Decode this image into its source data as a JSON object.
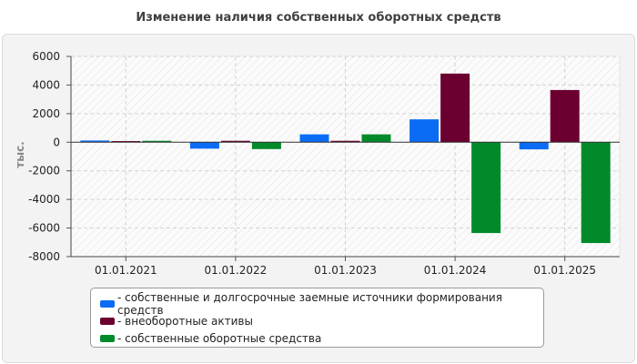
{
  "chart_data": {
    "type": "bar",
    "title": "Изменение наличия собственных оборотных средств",
    "ylabel": "тыс.",
    "xlabel": "",
    "ylim": [
      -8000,
      6000
    ],
    "yticks": [
      6000,
      4000,
      2000,
      0,
      -2000,
      -4000,
      -6000,
      -8000
    ],
    "grid": true,
    "categories": [
      "01.01.2021",
      "01.01.2022",
      "01.01.2023",
      "01.01.2024",
      "01.01.2025"
    ],
    "series": [
      {
        "name": "собственные и долгосрочные заемные источники формирования средств",
        "color": "#0a6cf5",
        "values": [
          120,
          -450,
          550,
          1600,
          -500
        ]
      },
      {
        "name": "внеоборотные активы",
        "color": "#6b0030",
        "values": [
          80,
          100,
          100,
          4800,
          3650
        ]
      },
      {
        "name": "собственные оборотные средства",
        "color": "#008a2a",
        "values": [
          100,
          -480,
          550,
          -6350,
          -7050
        ]
      }
    ],
    "legend_position": "bottom"
  },
  "legend": {
    "items": [
      {
        "label": "- собственные и долгосрочные заемные источники формирования средств",
        "color": "#0a6cf5"
      },
      {
        "label": "- внеоборотные активы",
        "color": "#6b0030"
      },
      {
        "label": "- собственные оборотные средства",
        "color": "#008a2a"
      }
    ]
  }
}
